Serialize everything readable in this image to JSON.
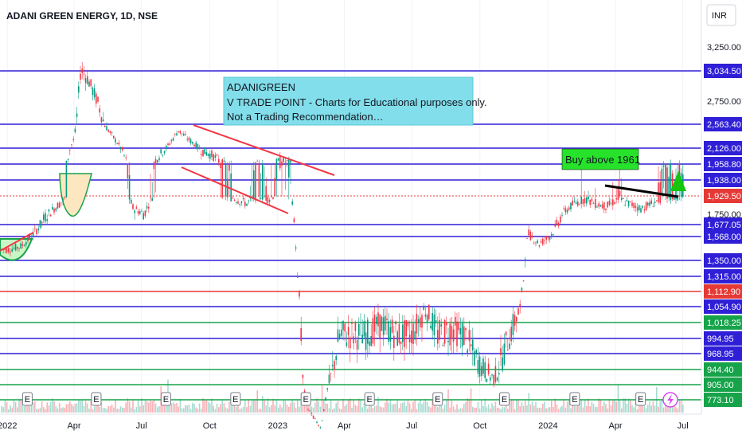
{
  "header": {
    "symbol_title": "ADANI GREEN ENERGY, 1D, NSE",
    "currency": "INR"
  },
  "chart_data": {
    "type": "candlestick",
    "title": "ADANI GREEN ENERGY, 1D, NSE",
    "currency": "INR",
    "x_tick_labels": [
      "2022",
      "Apr",
      "Jul",
      "Oct",
      "2023",
      "Apr",
      "Jul",
      "Oct",
      "2024",
      "Apr",
      "Jul"
    ],
    "y_tick_labels": [
      "3,250.00",
      "2,750.00",
      "1,750.00"
    ],
    "ylim": [
      700,
      3400
    ],
    "current_price": 1929.5,
    "horizontal_levels": [
      {
        "value": 3034.5,
        "color": "#2f1fd6"
      },
      {
        "value": 2563.4,
        "color": "#2f1fd6"
      },
      {
        "value": 2126.0,
        "color": "#2f1fd6"
      },
      {
        "value": 1958.8,
        "color": "#2f1fd6"
      },
      {
        "value": 1938.0,
        "color": "#2f1fd6"
      },
      {
        "value": 1929.5,
        "color": "#e53935"
      },
      {
        "value": 1677.05,
        "color": "#2f1fd6"
      },
      {
        "value": 1568.0,
        "color": "#2f1fd6"
      },
      {
        "value": 1350.0,
        "color": "#2f1fd6"
      },
      {
        "value": 1315.0,
        "color": "#2f1fd6"
      },
      {
        "value": 1112.9,
        "color": "#e53935"
      },
      {
        "value": 1054.9,
        "color": "#2f1fd6"
      },
      {
        "value": 1018.25,
        "color": "#16a34a"
      },
      {
        "value": 994.95,
        "color": "#2f1fd6"
      },
      {
        "value": 968.95,
        "color": "#2f1fd6"
      },
      {
        "value": 944.4,
        "color": "#16a34a"
      },
      {
        "value": 905.0,
        "color": "#16a34a"
      },
      {
        "value": 773.1,
        "color": "#16a34a"
      }
    ],
    "price_labels": [
      {
        "text": "3,034.50",
        "color": "#2f1fd6"
      },
      {
        "text": "2,563.40",
        "color": "#2f1fd6"
      },
      {
        "text": "2,126.00",
        "color": "#2f1fd6"
      },
      {
        "text": "1,958.80",
        "color": "#2f1fd6"
      },
      {
        "text": "1,938.00",
        "color": "#2f1fd6"
      },
      {
        "text": "1,929.50",
        "color": "#e53935"
      },
      {
        "text": "1,677.05",
        "color": "#2f1fd6"
      },
      {
        "text": "1,568.00",
        "color": "#2f1fd6"
      },
      {
        "text": "1,350.00",
        "color": "#2f1fd6"
      },
      {
        "text": "1,315.00",
        "color": "#2f1fd6"
      },
      {
        "text": "1,112.90",
        "color": "#e53935"
      },
      {
        "text": "1,054.90",
        "color": "#2f1fd6"
      },
      {
        "text": "1,018.25",
        "color": "#16a34a"
      },
      {
        "text": "994.95",
        "color": "#2f1fd6"
      },
      {
        "text": "968.95",
        "color": "#2f1fd6"
      },
      {
        "text": "944.40",
        "color": "#16a34a"
      },
      {
        "text": "905.00",
        "color": "#16a34a"
      },
      {
        "text": "773.10",
        "color": "#16a34a"
      }
    ],
    "price_path": [
      [
        "2022-01-03",
        1450
      ],
      [
        "2022-01-20",
        1480
      ],
      [
        "2022-02-05",
        1590
      ],
      [
        "2022-02-20",
        1720
      ],
      [
        "2022-03-05",
        1800
      ],
      [
        "2022-03-20",
        1900
      ],
      [
        "2022-04-01",
        2300
      ],
      [
        "2022-04-10",
        3050
      ],
      [
        "2022-04-20",
        2950
      ],
      [
        "2022-05-05",
        2700
      ],
      [
        "2022-05-20",
        2400
      ],
      [
        "2022-06-05",
        2100
      ],
      [
        "2022-06-20",
        1800
      ],
      [
        "2022-07-05",
        1750
      ],
      [
        "2022-07-20",
        2000
      ],
      [
        "2022-08-05",
        2150
      ],
      [
        "2022-08-20",
        2450
      ],
      [
        "2022-09-01",
        2300
      ],
      [
        "2022-09-20",
        2100
      ],
      [
        "2022-10-05",
        2050
      ],
      [
        "2022-10-20",
        1950
      ],
      [
        "2022-11-05",
        1900
      ],
      [
        "2022-11-20",
        1850
      ],
      [
        "2022-12-05",
        1950
      ],
      [
        "2022-12-20",
        1900
      ],
      [
        "2023-01-05",
        2000
      ],
      [
        "2023-01-20",
        1950
      ],
      [
        "2023-01-30",
        1100
      ],
      [
        "2023-02-10",
        700
      ],
      [
        "2023-02-28",
        520
      ],
      [
        "2023-03-10",
        900
      ],
      [
        "2023-03-25",
        1000
      ],
      [
        "2023-04-10",
        1000
      ],
      [
        "2023-05-01",
        1000
      ],
      [
        "2023-05-20",
        1020
      ],
      [
        "2023-06-10",
        1000
      ],
      [
        "2023-07-01",
        1000
      ],
      [
        "2023-07-20",
        1050
      ],
      [
        "2023-08-05",
        1000
      ],
      [
        "2023-08-25",
        1010
      ],
      [
        "2023-09-10",
        1000
      ],
      [
        "2023-09-30",
        950
      ],
      [
        "2023-10-20",
        920
      ],
      [
        "2023-11-10",
        1000
      ],
      [
        "2023-11-25",
        1050
      ],
      [
        "2023-12-05",
        1600
      ],
      [
        "2023-12-20",
        1500
      ],
      [
        "2024-01-05",
        1580
      ],
      [
        "2024-01-20",
        1750
      ],
      [
        "2024-02-05",
        1850
      ],
      [
        "2024-02-20",
        1900
      ],
      [
        "2024-03-05",
        1850
      ],
      [
        "2024-03-20",
        1820
      ],
      [
        "2024-04-05",
        1900
      ],
      [
        "2024-04-20",
        1850
      ],
      [
        "2024-05-05",
        1800
      ],
      [
        "2024-05-20",
        1850
      ],
      [
        "2024-06-05",
        1920
      ]
    ],
    "annotations": {
      "note_box": [
        "ADANIGREEN",
        "V TRADE POINT - Charts for Educational purposes only.",
        "Not a Trading Recommendation…"
      ],
      "buy_label": "Buy above 1961",
      "earnings_marker": "E"
    }
  }
}
